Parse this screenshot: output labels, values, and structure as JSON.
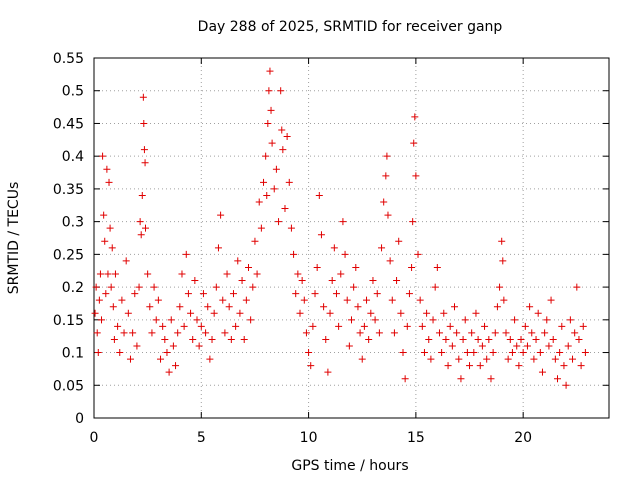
{
  "chart_data": {
    "type": "scatter",
    "title": "Day 288 of 2025, SRMTID for receiver ganp",
    "xlabel": "GPS time / hours",
    "ylabel": "SRMTID / TECUs",
    "xlim": [
      0,
      24
    ],
    "ylim": [
      0,
      0.55
    ],
    "xticks": [
      0,
      5,
      10,
      15,
      20
    ],
    "xtick_labels": [
      "0",
      "5",
      "10",
      "15",
      "20"
    ],
    "yticks": [
      0,
      0.05,
      0.1,
      0.15,
      0.2,
      0.25,
      0.3,
      0.35,
      0.4,
      0.45,
      0.5,
      0.55
    ],
    "ytick_labels": [
      "0",
      "0.05",
      "0.1",
      "0.15",
      "0.2",
      "0.25",
      "0.3",
      "0.35",
      "0.4",
      "0.45",
      "0.5",
      "0.55"
    ],
    "grid": true,
    "marker": "plus",
    "marker_color": "#e00000",
    "series": [
      {
        "name": "SRMTID",
        "points": [
          [
            0.05,
            0.16
          ],
          [
            0.1,
            0.2
          ],
          [
            0.15,
            0.13
          ],
          [
            0.2,
            0.1
          ],
          [
            0.25,
            0.18
          ],
          [
            0.3,
            0.22
          ],
          [
            0.35,
            0.15
          ],
          [
            0.4,
            0.4
          ],
          [
            0.45,
            0.31
          ],
          [
            0.5,
            0.27
          ],
          [
            0.55,
            0.19
          ],
          [
            0.6,
            0.38
          ],
          [
            0.65,
            0.22
          ],
          [
            0.7,
            0.36
          ],
          [
            0.75,
            0.29
          ],
          [
            0.8,
            0.2
          ],
          [
            0.85,
            0.26
          ],
          [
            0.9,
            0.17
          ],
          [
            0.95,
            0.12
          ],
          [
            1.0,
            0.22
          ],
          [
            1.1,
            0.14
          ],
          [
            1.2,
            0.1
          ],
          [
            1.3,
            0.18
          ],
          [
            1.4,
            0.13
          ],
          [
            1.5,
            0.24
          ],
          [
            1.6,
            0.16
          ],
          [
            1.7,
            0.09
          ],
          [
            1.8,
            0.13
          ],
          [
            1.9,
            0.19
          ],
          [
            2.0,
            0.11
          ],
          [
            2.1,
            0.2
          ],
          [
            2.15,
            0.3
          ],
          [
            2.2,
            0.28
          ],
          [
            2.25,
            0.34
          ],
          [
            2.3,
            0.49
          ],
          [
            2.32,
            0.45
          ],
          [
            2.35,
            0.41
          ],
          [
            2.38,
            0.39
          ],
          [
            2.4,
            0.29
          ],
          [
            2.5,
            0.22
          ],
          [
            2.6,
            0.17
          ],
          [
            2.7,
            0.13
          ],
          [
            2.8,
            0.2
          ],
          [
            2.9,
            0.15
          ],
          [
            3.0,
            0.18
          ],
          [
            3.1,
            0.09
          ],
          [
            3.2,
            0.14
          ],
          [
            3.3,
            0.12
          ],
          [
            3.4,
            0.1
          ],
          [
            3.5,
            0.07
          ],
          [
            3.6,
            0.15
          ],
          [
            3.7,
            0.11
          ],
          [
            3.8,
            0.08
          ],
          [
            3.9,
            0.13
          ],
          [
            4.0,
            0.17
          ],
          [
            4.1,
            0.22
          ],
          [
            4.2,
            0.14
          ],
          [
            4.3,
            0.25
          ],
          [
            4.4,
            0.19
          ],
          [
            4.5,
            0.16
          ],
          [
            4.6,
            0.12
          ],
          [
            4.7,
            0.21
          ],
          [
            4.8,
            0.15
          ],
          [
            4.9,
            0.11
          ],
          [
            5.0,
            0.14
          ],
          [
            5.1,
            0.19
          ],
          [
            5.2,
            0.13
          ],
          [
            5.3,
            0.17
          ],
          [
            5.4,
            0.09
          ],
          [
            5.5,
            0.12
          ],
          [
            5.6,
            0.16
          ],
          [
            5.7,
            0.2
          ],
          [
            5.8,
            0.26
          ],
          [
            5.9,
            0.31
          ],
          [
            6.0,
            0.18
          ],
          [
            6.1,
            0.13
          ],
          [
            6.2,
            0.22
          ],
          [
            6.3,
            0.17
          ],
          [
            6.4,
            0.12
          ],
          [
            6.5,
            0.19
          ],
          [
            6.6,
            0.14
          ],
          [
            6.7,
            0.24
          ],
          [
            6.8,
            0.16
          ],
          [
            6.9,
            0.21
          ],
          [
            7.0,
            0.12
          ],
          [
            7.1,
            0.18
          ],
          [
            7.2,
            0.23
          ],
          [
            7.3,
            0.15
          ],
          [
            7.4,
            0.2
          ],
          [
            7.5,
            0.27
          ],
          [
            7.6,
            0.22
          ],
          [
            7.7,
            0.33
          ],
          [
            7.8,
            0.29
          ],
          [
            7.9,
            0.36
          ],
          [
            8.0,
            0.4
          ],
          [
            8.05,
            0.34
          ],
          [
            8.1,
            0.45
          ],
          [
            8.15,
            0.5
          ],
          [
            8.2,
            0.53
          ],
          [
            8.25,
            0.47
          ],
          [
            8.3,
            0.42
          ],
          [
            8.4,
            0.35
          ],
          [
            8.5,
            0.38
          ],
          [
            8.6,
            0.3
          ],
          [
            8.7,
            0.5
          ],
          [
            8.75,
            0.44
          ],
          [
            8.8,
            0.41
          ],
          [
            8.9,
            0.32
          ],
          [
            9.0,
            0.43
          ],
          [
            9.1,
            0.36
          ],
          [
            9.2,
            0.29
          ],
          [
            9.3,
            0.25
          ],
          [
            9.4,
            0.19
          ],
          [
            9.5,
            0.22
          ],
          [
            9.6,
            0.16
          ],
          [
            9.7,
            0.21
          ],
          [
            9.8,
            0.18
          ],
          [
            9.9,
            0.13
          ],
          [
            10.0,
            0.1
          ],
          [
            10.1,
            0.08
          ],
          [
            10.2,
            0.14
          ],
          [
            10.3,
            0.19
          ],
          [
            10.4,
            0.23
          ],
          [
            10.5,
            0.34
          ],
          [
            10.6,
            0.28
          ],
          [
            10.7,
            0.17
          ],
          [
            10.8,
            0.12
          ],
          [
            10.9,
            0.07
          ],
          [
            11.0,
            0.16
          ],
          [
            11.1,
            0.21
          ],
          [
            11.2,
            0.26
          ],
          [
            11.3,
            0.19
          ],
          [
            11.4,
            0.14
          ],
          [
            11.5,
            0.22
          ],
          [
            11.6,
            0.3
          ],
          [
            11.7,
            0.25
          ],
          [
            11.8,
            0.18
          ],
          [
            11.9,
            0.11
          ],
          [
            12.0,
            0.15
          ],
          [
            12.1,
            0.2
          ],
          [
            12.2,
            0.23
          ],
          [
            12.3,
            0.17
          ],
          [
            12.4,
            0.13
          ],
          [
            12.5,
            0.09
          ],
          [
            12.6,
            0.14
          ],
          [
            12.7,
            0.18
          ],
          [
            12.8,
            0.12
          ],
          [
            12.9,
            0.16
          ],
          [
            13.0,
            0.21
          ],
          [
            13.1,
            0.15
          ],
          [
            13.2,
            0.19
          ],
          [
            13.3,
            0.13
          ],
          [
            13.4,
            0.26
          ],
          [
            13.5,
            0.33
          ],
          [
            13.6,
            0.37
          ],
          [
            13.65,
            0.4
          ],
          [
            13.7,
            0.31
          ],
          [
            13.8,
            0.24
          ],
          [
            13.9,
            0.18
          ],
          [
            14.0,
            0.13
          ],
          [
            14.1,
            0.21
          ],
          [
            14.2,
            0.27
          ],
          [
            14.3,
            0.16
          ],
          [
            14.4,
            0.1
          ],
          [
            14.5,
            0.06
          ],
          [
            14.6,
            0.14
          ],
          [
            14.7,
            0.19
          ],
          [
            14.8,
            0.23
          ],
          [
            14.85,
            0.3
          ],
          [
            14.9,
            0.42
          ],
          [
            14.95,
            0.46
          ],
          [
            15.0,
            0.37
          ],
          [
            15.1,
            0.25
          ],
          [
            15.2,
            0.18
          ],
          [
            15.3,
            0.14
          ],
          [
            15.4,
            0.1
          ],
          [
            15.5,
            0.16
          ],
          [
            15.6,
            0.12
          ],
          [
            15.7,
            0.09
          ],
          [
            15.8,
            0.15
          ],
          [
            15.9,
            0.2
          ],
          [
            16.0,
            0.23
          ],
          [
            16.1,
            0.13
          ],
          [
            16.2,
            0.1
          ],
          [
            16.3,
            0.16
          ],
          [
            16.4,
            0.12
          ],
          [
            16.5,
            0.08
          ],
          [
            16.6,
            0.14
          ],
          [
            16.7,
            0.11
          ],
          [
            16.8,
            0.17
          ],
          [
            16.9,
            0.13
          ],
          [
            17.0,
            0.09
          ],
          [
            17.1,
            0.06
          ],
          [
            17.2,
            0.12
          ],
          [
            17.3,
            0.15
          ],
          [
            17.4,
            0.1
          ],
          [
            17.5,
            0.08
          ],
          [
            17.6,
            0.13
          ],
          [
            17.7,
            0.1
          ],
          [
            17.8,
            0.16
          ],
          [
            17.9,
            0.12
          ],
          [
            18.0,
            0.08
          ],
          [
            18.1,
            0.11
          ],
          [
            18.2,
            0.14
          ],
          [
            18.3,
            0.09
          ],
          [
            18.4,
            0.12
          ],
          [
            18.5,
            0.06
          ],
          [
            18.6,
            0.1
          ],
          [
            18.7,
            0.13
          ],
          [
            18.8,
            0.17
          ],
          [
            18.9,
            0.2
          ],
          [
            19.0,
            0.27
          ],
          [
            19.05,
            0.24
          ],
          [
            19.1,
            0.18
          ],
          [
            19.2,
            0.13
          ],
          [
            19.3,
            0.09
          ],
          [
            19.4,
            0.12
          ],
          [
            19.5,
            0.1
          ],
          [
            19.6,
            0.15
          ],
          [
            19.7,
            0.11
          ],
          [
            19.8,
            0.08
          ],
          [
            19.9,
            0.12
          ],
          [
            20.0,
            0.1
          ],
          [
            20.1,
            0.14
          ],
          [
            20.2,
            0.11
          ],
          [
            20.3,
            0.17
          ],
          [
            20.4,
            0.13
          ],
          [
            20.5,
            0.09
          ],
          [
            20.6,
            0.12
          ],
          [
            20.7,
            0.16
          ],
          [
            20.8,
            0.1
          ],
          [
            20.9,
            0.07
          ],
          [
            21.0,
            0.13
          ],
          [
            21.1,
            0.15
          ],
          [
            21.2,
            0.11
          ],
          [
            21.3,
            0.18
          ],
          [
            21.4,
            0.12
          ],
          [
            21.5,
            0.09
          ],
          [
            21.6,
            0.06
          ],
          [
            21.7,
            0.1
          ],
          [
            21.8,
            0.14
          ],
          [
            21.9,
            0.08
          ],
          [
            22.0,
            0.05
          ],
          [
            22.1,
            0.11
          ],
          [
            22.2,
            0.15
          ],
          [
            22.3,
            0.09
          ],
          [
            22.4,
            0.13
          ],
          [
            22.5,
            0.2
          ],
          [
            22.6,
            0.12
          ],
          [
            22.7,
            0.08
          ],
          [
            22.8,
            0.14
          ],
          [
            22.9,
            0.1
          ]
        ]
      }
    ]
  }
}
